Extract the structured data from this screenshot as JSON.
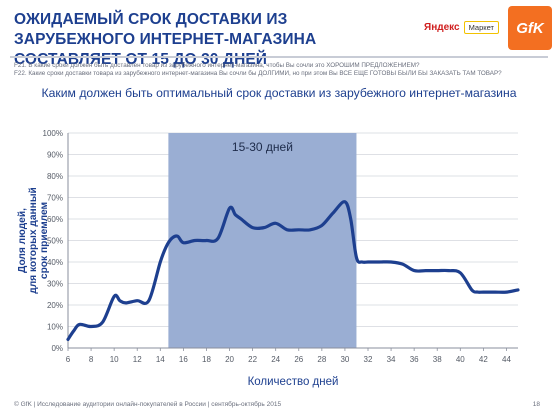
{
  "header": {
    "title": "ОЖИДАЕМЫЙ СРОК ДОСТАВКИ ИЗ ЗАРУБЕЖНОГО ИНТЕРНЕТ-МАГАЗИНА СОСТАВЛЯЕТ ОТ 15 ДО 30 ДНЕЙ",
    "yandex_brand": "Яндекс",
    "yandex_tag": "Маркет",
    "gfk_logo": "GfK"
  },
  "questions": {
    "q1": "F21. В какие сроки должен быть доставлен товар из зарубежного интернет-магазина, чтобы Вы сочли это ХОРОШИМ ПРЕДЛОЖЕНИЕМ?",
    "q2": "F22. Какие сроки доставки товара из зарубежного интернет-магазина Вы сочли бы ДОЛГИМИ, но при этом Вы ВСЕ ЕЩЕ ГОТОВЫ БЫЛИ БЫ ЗАКАЗАТЬ ТАМ ТОВАР?"
  },
  "footer": {
    "text": "© GfK | Исследование аудитории онлайн-покупателей в России | сентябрь-октябрь 2015",
    "page": "18"
  },
  "colors": {
    "line": "#1d3f8f",
    "highlight": "#9aaed3",
    "title": "#1d3f8f"
  },
  "chart_data": {
    "type": "line",
    "title": "Каким должен быть оптимальный срок доставки из зарубежного интернет-магазина",
    "xlabel": "Количество дней",
    "ylabel": "Доля людей, для которых данный срок приемлем",
    "xlim": [
      6,
      45
    ],
    "ylim": [
      0,
      100
    ],
    "x_ticks": [
      6,
      8,
      10,
      12,
      14,
      16,
      18,
      20,
      22,
      24,
      26,
      28,
      30,
      32,
      34,
      36,
      38,
      40,
      42,
      44
    ],
    "y_ticks": [
      "0%",
      "10%",
      "20%",
      "30%",
      "40%",
      "50%",
      "60%",
      "70%",
      "80%",
      "90%",
      "100%"
    ],
    "highlight": {
      "from": 14.7,
      "to": 31,
      "label": "15-30 дней"
    },
    "grid": true,
    "series": [
      {
        "x": [
          6,
          6.5,
          7,
          8,
          9,
          10,
          10.5,
          11,
          12,
          13,
          14,
          14.5,
          15,
          15.5,
          16,
          17,
          18,
          19,
          20,
          20.5,
          21,
          22,
          23,
          24,
          25,
          26,
          27,
          28,
          29,
          30,
          30.5,
          31,
          31.5,
          32,
          33,
          34,
          35,
          36,
          37,
          38,
          39,
          40,
          41,
          41.5,
          42,
          43,
          44,
          45
        ],
        "y": [
          4,
          8,
          11,
          10,
          12,
          24,
          22,
          21,
          22,
          22,
          40,
          47,
          51,
          52,
          49,
          50,
          50,
          51,
          65,
          62,
          60,
          56,
          56,
          58,
          55,
          55,
          55,
          57,
          63,
          68,
          60,
          42,
          40,
          40,
          40,
          40,
          39,
          36,
          36,
          36,
          36,
          35,
          27,
          26,
          26,
          26,
          26,
          27
        ]
      }
    ]
  }
}
